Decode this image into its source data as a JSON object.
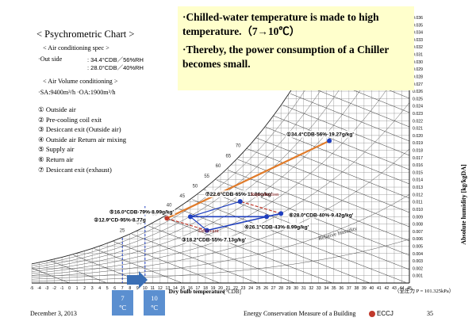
{
  "title": "< Psychrometric Chart >",
  "spec": {
    "heading": "< Air conditioning spec >",
    "outside_label": "·Out  side",
    "outside_value": ": 34.4°CDB／56%RH",
    "inside_value": ": 28.0°CDB／40%RH",
    "volume_heading": "< Air Volume conditioning >",
    "volume_value": "·SA:9400m³/h   ·OA:1900m³/h"
  },
  "legend_items": [
    "① Outside air",
    "② Pre-cooling coil exit",
    "③ Desiccant exit (Outside air)",
    "④ Outside air Return air mixing",
    "⑤ Supply air",
    "⑥ Return air",
    "⑦ Desiccant exit (exhaust)"
  ],
  "callout": {
    "line1": "·Chilled-water temperature is made to high temperature.（7→10℃）",
    "line2": "·Thereby, the power consumption of a Chiller becomes small."
  },
  "temp_boxes": [
    {
      "label": "7",
      "unit": "℃"
    },
    {
      "label": "10",
      "unit": "℃"
    }
  ],
  "chart_data": {
    "type": "scatter",
    "xlabel": "Dry bulb temperature",
    "xunit": "[°CDB]",
    "ylabel": "Absolute humidity [kg/kgDA]",
    "xlim": [
      -5,
      45
    ],
    "ylim": [
      0,
      0.036
    ],
    "x_ticks": [
      -5,
      -4,
      -3,
      -2,
      -1,
      0,
      1,
      2,
      3,
      4,
      5,
      6,
      7,
      8,
      9,
      10,
      11,
      12,
      13,
      14,
      15,
      16,
      17,
      18,
      19,
      20,
      21,
      22,
      23,
      24,
      25,
      26,
      27,
      28,
      29,
      30,
      31,
      32,
      33,
      34,
      35,
      36,
      37,
      38,
      39,
      40,
      41,
      42,
      43,
      44,
      45
    ],
    "y_ticks": [
      0.001,
      0.002,
      0.003,
      0.004,
      0.005,
      0.006,
      0.007,
      0.008,
      0.009,
      0.01,
      0.011,
      0.012,
      0.013,
      0.014,
      0.015,
      0.016,
      0.017,
      0.018,
      0.019,
      0.02,
      0.021,
      0.022,
      0.023,
      0.024,
      0.025,
      0.026,
      0.027,
      0.028,
      0.029,
      0.03,
      0.031,
      0.032,
      0.033,
      0.034,
      0.035,
      0.036
    ],
    "y_tick_labels": [
      "0.001",
      "0.002",
      "0.003",
      "0.004",
      "0.005",
      "0.006",
      "0.007",
      "0.008",
      "0.009",
      "0.010",
      "0.011",
      "0.012",
      "0.013",
      "0.014",
      "0.015",
      "0.016",
      "0.017",
      "0.018",
      "0.019",
      "0.020",
      "0.021",
      "0.022",
      "0.023",
      "0.024",
      "0.025",
      "0.026",
      "0.027",
      "0.028",
      "0.029",
      "0.030",
      "0.031",
      "0.032",
      "0.033",
      "0.034",
      "0.035",
      "0.036"
    ],
    "enthalpy_labels": [
      "70",
      "65",
      "60",
      "55",
      "50",
      "45",
      "40",
      "35",
      "30",
      "25"
    ],
    "rh_label": "Relative humidity",
    "points": [
      {
        "id": 1,
        "label": "①34.4°CDB·56%·19.27g/kg'",
        "x": 34.4,
        "y": 0.01927,
        "color": "#1f3fbf"
      },
      {
        "id": 2,
        "label": "②12.9°CD·95%·8.77g",
        "x": 12.9,
        "y": 0.00877,
        "color": "#c0392b"
      },
      {
        "id": 3,
        "label": "③18.2°CDB·55%·7.13g/kg'",
        "x": 18.2,
        "y": 0.00713,
        "color": "#1f3fbf"
      },
      {
        "id": 4,
        "label": "④26.1°CDB·43%·8.99g/kg'",
        "x": 26.1,
        "y": 0.00899,
        "color": "#1f3fbf"
      },
      {
        "id": 5,
        "label": "⑤16.0°CDB·79%·8.99g/kg'",
        "x": 16.0,
        "y": 0.00899,
        "color": "#1f3fbf"
      },
      {
        "id": 6,
        "label": "⑥28.0°CDB·40%·9.42g/kg'",
        "x": 28.0,
        "y": 0.00942,
        "color": "#1f3fbf"
      },
      {
        "id": 7,
        "label": "⑦22.6°CDB·65%·11.06g/kg'",
        "x": 22.6,
        "y": 0.01106,
        "color": "#1f3fbf"
      }
    ],
    "annotations": [
      "Reproduction",
      "Desiccant"
    ],
    "pressure_note": "（全圧力 P = 101.325kPa）"
  },
  "footer": {
    "date": "December 3, 2013",
    "center": "Energy Conservation Measure of a Building",
    "org": "ECCJ",
    "page": "35"
  }
}
